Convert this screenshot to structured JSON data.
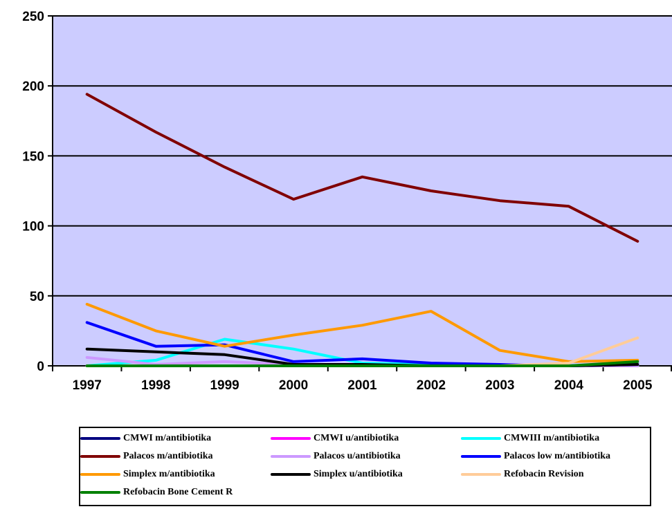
{
  "chart_data": {
    "type": "line",
    "title": "",
    "xlabel": "",
    "ylabel": "",
    "categories": [
      "1997",
      "1998",
      "1999",
      "2000",
      "2001",
      "2002",
      "2003",
      "2004",
      "2005"
    ],
    "ylim": [
      0,
      250
    ],
    "yticks": [
      0,
      50,
      100,
      150,
      200,
      250
    ],
    "grid": true,
    "plot_background": "#CCCCFF",
    "legend_position": "bottom",
    "series": [
      {
        "name": "CMWI m/antibiotika",
        "color": "#000080",
        "values": [
          0,
          0,
          0,
          0,
          0,
          0,
          0,
          0,
          0
        ]
      },
      {
        "name": "CMWI u/antibiotika",
        "color": "#FF00FF",
        "values": [
          0,
          0,
          0,
          0,
          0,
          0,
          0,
          0,
          0
        ]
      },
      {
        "name": "CMWIII m/antibiotika",
        "color": "#00FFFF",
        "values": [
          0,
          4,
          19,
          12,
          2,
          1,
          0,
          0,
          0
        ]
      },
      {
        "name": "Palacos m/antibiotika",
        "color": "#800000",
        "values": [
          194,
          167,
          142,
          119,
          135,
          125,
          118,
          114,
          89
        ]
      },
      {
        "name": "Palacos u/antibiotika",
        "color": "#CC99FF",
        "values": [
          6,
          1,
          3,
          1,
          0,
          0,
          0,
          0,
          0
        ]
      },
      {
        "name": "Palacos low m/antibiotika",
        "color": "#0000FF",
        "values": [
          31,
          14,
          15,
          3,
          5,
          2,
          1,
          0,
          1
        ]
      },
      {
        "name": "Simplex m/antibiotika",
        "color": "#FF9900",
        "values": [
          44,
          25,
          14,
          22,
          29,
          39,
          11,
          3,
          4
        ]
      },
      {
        "name": "Simplex u/antibiotika",
        "color": "#000000",
        "values": [
          12,
          10,
          8,
          1,
          1,
          0,
          0,
          0,
          1
        ]
      },
      {
        "name": "Refobacin Revision",
        "color": "#FFCC99",
        "values": [
          0,
          0,
          0,
          0,
          0,
          0,
          0,
          2,
          20
        ]
      },
      {
        "name": "Refobacin Bone Cement R",
        "color": "#008000",
        "values": [
          0,
          0,
          0,
          0,
          0,
          0,
          0,
          0,
          3
        ]
      }
    ]
  }
}
